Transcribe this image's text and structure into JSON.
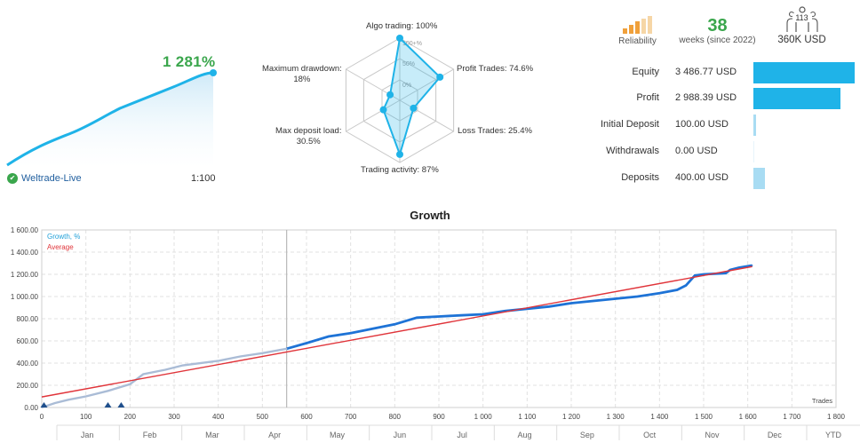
{
  "summary": {
    "growth_pct": "1 281%",
    "account_name": "Weltrade-Live",
    "leverage": "1:100"
  },
  "radar": {
    "axes": [
      {
        "label": "Algo trading: 100%",
        "value": 100
      },
      {
        "label": "Profit Trades: 74.6%",
        "value": 74.6
      },
      {
        "label": "Loss Trades: 25.4%",
        "value": 25.4
      },
      {
        "label": "Trading activity: 87%",
        "value": 87
      },
      {
        "label": "Max deposit load:",
        "value_text": "30.5%",
        "value": 30.5
      },
      {
        "label": "Maximum drawdown:",
        "value_text": "18%",
        "value": 18
      }
    ],
    "ring_labels": [
      "100+%",
      "50%",
      "0%"
    ]
  },
  "stats": {
    "reliability_label": "Reliability",
    "weeks_value": "38",
    "weeks_label": "weeks (since 2022)",
    "subscribers": "113",
    "funds": "360K USD"
  },
  "financials": [
    {
      "label": "Equity",
      "value": "3 486.77 USD",
      "amount": 3486.77,
      "color": "#1fb3e8"
    },
    {
      "label": "Profit",
      "value": "2 988.39 USD",
      "amount": 2988.39,
      "color": "#1fb3e8"
    },
    {
      "label": "Initial Deposit",
      "value": "100.00 USD",
      "amount": 100.0,
      "color": "#a8dcf3"
    },
    {
      "label": "Withdrawals",
      "value": "0.00 USD",
      "amount": 0.0,
      "color": "#a8dcf3"
    },
    {
      "label": "Deposits",
      "value": "400.00 USD",
      "amount": 400.0,
      "color": "#a8dcf3"
    }
  ],
  "colors": {
    "growth_line": "#1e73d6",
    "growth_early": "#aabcd6",
    "average_line": "#e0343a",
    "accent": "#1fb3e8",
    "green": "#3aa64c"
  },
  "chart_data": {
    "type": "line",
    "title": "Growth",
    "xlabel": "Trades",
    "ylabel": "",
    "xlim": [
      0,
      1800
    ],
    "ylim": [
      0,
      1600
    ],
    "y_ticks": [
      "0.00",
      "200.00",
      "400.00",
      "600.00",
      "800.00",
      "1 000.00",
      "1 200.00",
      "1 400.00",
      "1 600.00"
    ],
    "y_tick_values": [
      0,
      200,
      400,
      600,
      800,
      1000,
      1200,
      1400,
      1600
    ],
    "x_ticks": [
      "0",
      "100",
      "200",
      "300",
      "400",
      "500",
      "600",
      "700",
      "800",
      "900",
      "1 000",
      "1 100",
      "1 200",
      "1 300",
      "1 400",
      "1 500",
      "1 600",
      "1 700",
      "1 800"
    ],
    "x_tick_values": [
      0,
      100,
      200,
      300,
      400,
      500,
      600,
      700,
      800,
      900,
      1000,
      1100,
      1200,
      1300,
      1400,
      1500,
      1600,
      1700,
      1800
    ],
    "months": [
      "Jan",
      "Feb",
      "Mar",
      "Apr",
      "May",
      "Jun",
      "Jul",
      "Aug",
      "Sep",
      "Oct",
      "Nov",
      "Dec",
      "YTD"
    ],
    "year_marker": 555,
    "legend": [
      "Growth, %",
      "Average"
    ],
    "series": [
      {
        "name": "Growth, %",
        "x": [
          0,
          30,
          60,
          100,
          150,
          200,
          230,
          280,
          320,
          400,
          450,
          500,
          555,
          600,
          650,
          700,
          750,
          800,
          850,
          900,
          950,
          1000,
          1050,
          1100,
          1150,
          1200,
          1250,
          1300,
          1350,
          1400,
          1440,
          1460,
          1480,
          1500,
          1550,
          1560,
          1580,
          1610
        ],
        "y": [
          0,
          40,
          70,
          100,
          150,
          210,
          300,
          340,
          380,
          420,
          460,
          490,
          530,
          580,
          640,
          670,
          710,
          750,
          810,
          820,
          830,
          840,
          870,
          890,
          910,
          940,
          960,
          980,
          1000,
          1030,
          1060,
          1100,
          1190,
          1200,
          1210,
          1240,
          1260,
          1280
        ]
      },
      {
        "name": "Average",
        "x": [
          0,
          1610
        ],
        "y": [
          95,
          1270
        ]
      }
    ],
    "markers": [
      5,
      150,
      180
    ]
  }
}
